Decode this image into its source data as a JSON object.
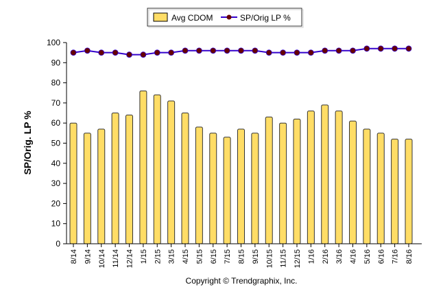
{
  "chart_data": {
    "type": "bar+line",
    "categories": [
      "8/14",
      "9/14",
      "10/14",
      "11/14",
      "12/14",
      "1/15",
      "2/15",
      "3/15",
      "4/15",
      "5/15",
      "6/15",
      "7/15",
      "8/15",
      "9/15",
      "10/15",
      "11/15",
      "12/15",
      "1/16",
      "2/16",
      "3/16",
      "4/16",
      "5/16",
      "6/16",
      "7/16",
      "8/16"
    ],
    "series": [
      {
        "name": "Avg CDOM",
        "type": "bar",
        "color": "#FFDD66",
        "values": [
          60,
          55,
          57,
          65,
          64,
          76,
          74,
          71,
          65,
          58,
          55,
          53,
          57,
          55,
          63,
          60,
          62,
          66,
          69,
          66,
          61,
          57,
          55,
          52,
          52
        ]
      },
      {
        "name": "SP/Orig LP %",
        "type": "line",
        "color": "#3300CC",
        "marker_color": "#660000",
        "values": [
          95,
          96,
          95,
          95,
          94,
          94,
          95,
          95,
          96,
          96,
          96,
          96,
          96,
          96,
          95,
          95,
          95,
          95,
          96,
          96,
          96,
          97,
          97,
          97,
          97
        ]
      }
    ],
    "ylabel": "SP/Orig. LP %",
    "ylim": [
      0,
      100
    ],
    "yticks": [
      0,
      10,
      20,
      30,
      40,
      50,
      60,
      70,
      80,
      90,
      100
    ],
    "grid": false,
    "legend": "top-center"
  },
  "footer": "Copyright © Trendgraphix, Inc."
}
